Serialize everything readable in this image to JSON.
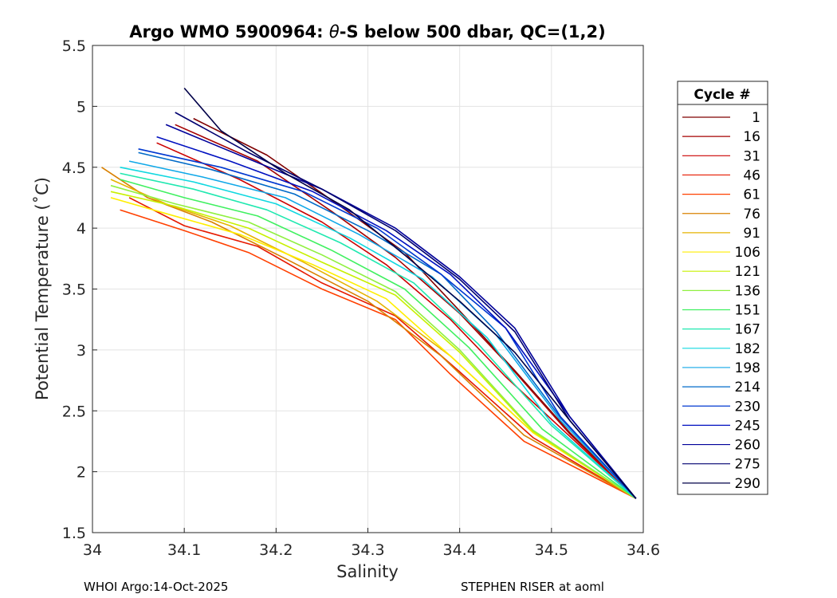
{
  "chart_data": {
    "type": "line",
    "title": "Argo WMO 5900964: θ-S below 500 dbar,  QC=(1,2)",
    "title_prefix": "Argo WMO 5900964: ",
    "title_theta": "θ",
    "title_suffix": "-S below 500 dbar,  QC=(1,2)",
    "xlabel": "Salinity",
    "ylabel": "Potential Temperature (˚C)",
    "xlim": [
      34,
      34.6
    ],
    "ylim": [
      1.5,
      5.5
    ],
    "xticks": [
      34,
      34.1,
      34.2,
      34.3,
      34.4,
      34.5,
      34.6
    ],
    "xtick_labels": [
      "34",
      "34.1",
      "34.2",
      "34.3",
      "34.4",
      "34.5",
      "34.6"
    ],
    "yticks": [
      1.5,
      2,
      2.5,
      3,
      3.5,
      4,
      4.5,
      5,
      5.5
    ],
    "ytick_labels": [
      "1.5",
      "2",
      "2.5",
      "3",
      "3.5",
      "4",
      "4.5",
      "5",
      "5.5"
    ],
    "grid": true,
    "legend": {
      "title": "Cycle #",
      "position": "outside-right",
      "cycles": [
        "1",
        "16",
        "31",
        "46",
        "61",
        "76",
        "91",
        "106",
        "121",
        "136",
        "151",
        "167",
        "182",
        "198",
        "214",
        "230",
        "245",
        "260",
        "275",
        "290"
      ],
      "colors": [
        "#7f0000",
        "#a50000",
        "#cc0000",
        "#e61a00",
        "#ff4000",
        "#d98000",
        "#e6b300",
        "#ffee00",
        "#c8f000",
        "#90f040",
        "#40f060",
        "#20e8b0",
        "#10d8e0",
        "#10a8e8",
        "#006ac8",
        "#0038d0",
        "#0010c0",
        "#00009a",
        "#000070",
        "#000048"
      ]
    },
    "profile_endpoint": {
      "salinity": 34.592,
      "theta": 1.78
    },
    "series": [
      {
        "name": "1",
        "x": [
          34.11,
          34.19,
          34.27,
          34.34,
          34.4,
          34.46,
          34.52,
          34.592
        ],
        "y": [
          4.9,
          4.6,
          4.18,
          3.8,
          3.32,
          2.83,
          2.32,
          1.78
        ]
      },
      {
        "name": "16",
        "x": [
          34.09,
          34.18,
          34.26,
          34.33,
          34.4,
          34.46,
          34.52,
          34.592
        ],
        "y": [
          4.85,
          4.55,
          4.14,
          3.76,
          3.3,
          2.82,
          2.31,
          1.78
        ]
      },
      {
        "name": "31",
        "x": [
          34.07,
          34.16,
          34.25,
          34.32,
          34.39,
          34.45,
          34.52,
          34.592
        ],
        "y": [
          4.7,
          4.4,
          4.05,
          3.7,
          3.25,
          2.78,
          2.29,
          1.78
        ]
      },
      {
        "name": "46",
        "x": [
          34.04,
          34.1,
          34.18,
          34.25,
          34.33,
          34.4,
          34.48,
          34.592
        ],
        "y": [
          4.25,
          4.02,
          3.85,
          3.55,
          3.28,
          2.82,
          2.28,
          1.78
        ]
      },
      {
        "name": "61",
        "x": [
          34.03,
          34.1,
          34.17,
          34.25,
          34.33,
          34.39,
          34.47,
          34.592
        ],
        "y": [
          4.15,
          3.98,
          3.8,
          3.5,
          3.25,
          2.8,
          2.25,
          1.78
        ]
      },
      {
        "name": "76",
        "x": [
          34.01,
          34.06,
          34.13,
          34.21,
          34.3,
          34.38,
          34.47,
          34.592
        ],
        "y": [
          4.5,
          4.25,
          4.05,
          3.75,
          3.4,
          2.95,
          2.3,
          1.78
        ]
      },
      {
        "name": "91",
        "x": [
          34.02,
          34.08,
          34.15,
          34.23,
          34.31,
          34.39,
          34.48,
          34.592
        ],
        "y": [
          4.4,
          4.2,
          4.02,
          3.72,
          3.4,
          2.95,
          2.32,
          1.78
        ]
      },
      {
        "name": "106",
        "x": [
          34.02,
          34.08,
          34.16,
          34.24,
          34.32,
          34.39,
          34.48,
          34.592
        ],
        "y": [
          4.25,
          4.12,
          3.95,
          3.7,
          3.42,
          2.95,
          2.32,
          1.78
        ]
      },
      {
        "name": "121",
        "x": [
          34.02,
          34.09,
          34.17,
          34.25,
          34.33,
          34.4,
          34.48,
          34.592
        ],
        "y": [
          4.3,
          4.18,
          4.0,
          3.72,
          3.45,
          2.98,
          2.33,
          1.78
        ]
      },
      {
        "name": "136",
        "x": [
          34.02,
          34.09,
          34.17,
          34.25,
          34.33,
          34.4,
          34.48,
          34.592
        ],
        "y": [
          4.35,
          4.2,
          4.05,
          3.78,
          3.48,
          3.0,
          2.34,
          1.78
        ]
      },
      {
        "name": "151",
        "x": [
          34.03,
          34.1,
          34.18,
          34.26,
          34.34,
          34.41,
          34.49,
          34.592
        ],
        "y": [
          4.4,
          4.25,
          4.1,
          3.82,
          3.5,
          3.02,
          2.35,
          1.78
        ]
      },
      {
        "name": "167",
        "x": [
          34.03,
          34.11,
          34.19,
          34.27,
          34.35,
          34.42,
          34.5,
          34.592
        ],
        "y": [
          4.45,
          4.32,
          4.15,
          3.88,
          3.55,
          3.05,
          2.38,
          1.78
        ]
      },
      {
        "name": "182",
        "x": [
          34.03,
          34.11,
          34.2,
          34.28,
          34.36,
          34.43,
          34.5,
          34.592
        ],
        "y": [
          4.5,
          4.38,
          4.2,
          3.92,
          3.58,
          3.1,
          2.4,
          1.78
        ]
      },
      {
        "name": "198",
        "x": [
          34.04,
          34.12,
          34.21,
          34.29,
          34.37,
          34.44,
          34.51,
          34.592
        ],
        "y": [
          4.55,
          4.42,
          4.25,
          3.95,
          3.6,
          3.12,
          2.42,
          1.78
        ]
      },
      {
        "name": "214",
        "x": [
          34.05,
          34.13,
          34.22,
          34.3,
          34.38,
          34.44,
          34.51,
          34.592
        ],
        "y": [
          4.62,
          4.48,
          4.28,
          3.98,
          3.62,
          3.15,
          2.44,
          1.78
        ]
      },
      {
        "name": "230",
        "x": [
          34.05,
          34.14,
          34.23,
          34.31,
          34.38,
          34.45,
          34.51,
          34.592
        ],
        "y": [
          4.65,
          4.5,
          4.3,
          4.0,
          3.62,
          3.18,
          2.45,
          1.78
        ]
      },
      {
        "name": "245",
        "x": [
          34.07,
          34.15,
          34.24,
          34.32,
          34.39,
          34.45,
          34.52,
          34.592
        ],
        "y": [
          4.75,
          4.55,
          4.3,
          3.98,
          3.62,
          3.18,
          2.45,
          1.78
        ]
      },
      {
        "name": "260",
        "x": [
          34.08,
          34.16,
          34.25,
          34.33,
          34.4,
          34.46,
          34.52,
          34.592
        ],
        "y": [
          4.85,
          4.6,
          4.32,
          4.0,
          3.6,
          3.18,
          2.45,
          1.78
        ]
      },
      {
        "name": "275",
        "x": [
          34.09,
          34.17,
          34.25,
          34.33,
          34.4,
          34.46,
          34.52,
          34.592
        ],
        "y": [
          4.95,
          4.62,
          4.32,
          3.98,
          3.58,
          3.15,
          2.42,
          1.78
        ]
      },
      {
        "name": "290",
        "x": [
          34.1,
          34.14,
          34.21,
          34.28,
          34.34,
          34.4,
          34.46,
          34.52,
          34.592
        ],
        "y": [
          5.15,
          4.8,
          4.45,
          4.15,
          3.78,
          3.4,
          2.98,
          2.42,
          1.78
        ]
      }
    ]
  },
  "footer": {
    "left": "WHOI Argo:14-Oct-2025",
    "right": "STEPHEN RISER at aoml"
  }
}
